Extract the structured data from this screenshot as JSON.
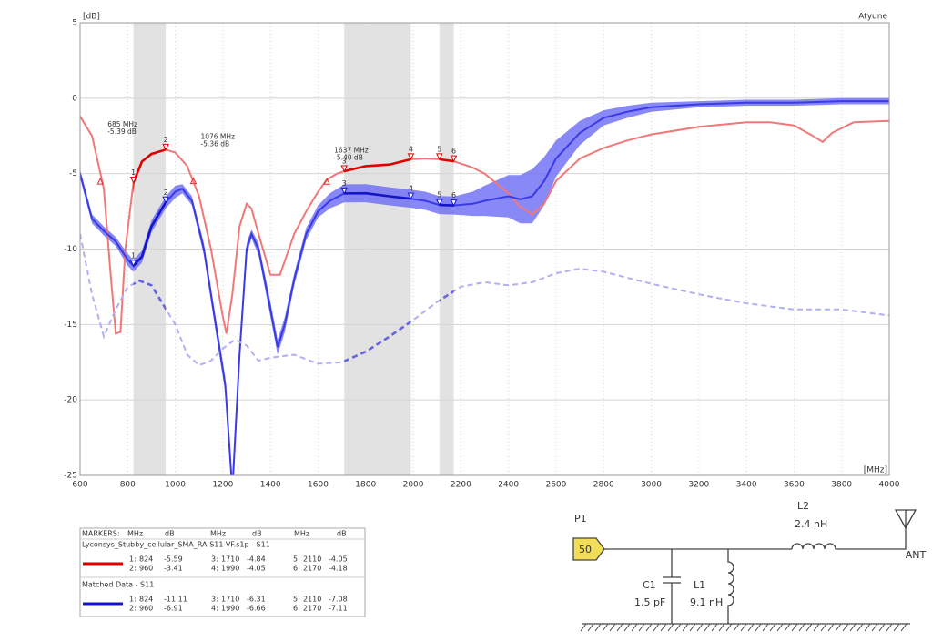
{
  "chart_data": {
    "type": "line",
    "y_label": "[dB]",
    "x_label": "[MHz]",
    "brand": "Atyune",
    "xlim": [
      600,
      4000
    ],
    "ylim": [
      -25,
      5
    ],
    "xticks": [
      600,
      800,
      1000,
      1200,
      1400,
      1600,
      1800,
      2000,
      2200,
      2400,
      2600,
      2800,
      3000,
      3200,
      3400,
      3600,
      3800,
      4000
    ],
    "yticks": [
      5,
      0,
      -5,
      -10,
      -15,
      -20,
      -25
    ],
    "grid": true,
    "bands": [
      [
        824,
        960
      ],
      [
        1710,
        1990
      ],
      [
        2110,
        2170
      ]
    ],
    "series": [
      {
        "name": "Lyconsys_Stubby_cellular_SMA_RA-S11-VF.s1p - S11",
        "color": "#f07878",
        "highlight_color": "#e00000",
        "legend_color": "#e00000",
        "x": [
          600,
          650,
          700,
          730,
          750,
          770,
          790,
          824,
          860,
          900,
          960,
          1000,
          1050,
          1100,
          1150,
          1200,
          1215,
          1240,
          1270,
          1300,
          1320,
          1350,
          1400,
          1440,
          1500,
          1550,
          1600,
          1637,
          1680,
          1710,
          1800,
          1900,
          1990,
          2050,
          2110,
          2170,
          2250,
          2300,
          2400,
          2450,
          2500,
          2550,
          2600,
          2700,
          2800,
          2900,
          3000,
          3200,
          3400,
          3500,
          3600,
          3680,
          3720,
          3760,
          3850,
          4000
        ],
        "values": [
          -1.2,
          -2.5,
          -6,
          -12,
          -15.6,
          -15.5,
          -10,
          -5.59,
          -4.2,
          -3.7,
          -3.41,
          -3.6,
          -4.5,
          -6.5,
          -10,
          -14.5,
          -15.6,
          -13,
          -8.5,
          -7,
          -7.3,
          -9,
          -11.7,
          -11.7,
          -9,
          -7.5,
          -6.2,
          -5.4,
          -5,
          -4.84,
          -4.5,
          -4.4,
          -4.05,
          -4,
          -4.05,
          -4.18,
          -4.6,
          -5,
          -6.3,
          -7.2,
          -7.7,
          -7,
          -5.5,
          -4,
          -3.3,
          -2.8,
          -2.4,
          -1.9,
          -1.6,
          -1.6,
          -1.8,
          -2.5,
          -2.9,
          -2.3,
          -1.6,
          -1.5
        ]
      },
      {
        "name": "Matched Data - S11",
        "color": "#3a3ae6",
        "highlight_color": "#1414c8",
        "legend_color": "#1414d0",
        "band_color": "#6a6af5",
        "x": [
          600,
          650,
          700,
          750,
          800,
          824,
          860,
          900,
          960,
          1000,
          1030,
          1070,
          1120,
          1170,
          1210,
          1240,
          1270,
          1300,
          1320,
          1350,
          1400,
          1430,
          1460,
          1500,
          1550,
          1600,
          1650,
          1710,
          1800,
          1900,
          1990,
          2050,
          2110,
          2170,
          2250,
          2300,
          2400,
          2450,
          2500,
          2550,
          2600,
          2700,
          2800,
          2900,
          3000,
          3200,
          3400,
          3600,
          3800,
          4000
        ],
        "values": [
          -5,
          -8,
          -8.8,
          -9.5,
          -10.7,
          -11.11,
          -10.5,
          -8.5,
          -6.91,
          -6.2,
          -6,
          -6.8,
          -10,
          -15,
          -19,
          -26,
          -17,
          -10,
          -9,
          -10,
          -14,
          -16.5,
          -15,
          -12,
          -9,
          -7.5,
          -6.8,
          -6.31,
          -6.3,
          -6.5,
          -6.66,
          -6.8,
          -7.08,
          -7.11,
          -7,
          -6.8,
          -6.5,
          -6.7,
          -6.5,
          -5.5,
          -4,
          -2.3,
          -1.3,
          -0.9,
          -0.6,
          -0.4,
          -0.3,
          -0.3,
          -0.2,
          -0.2
        ],
        "upper": [
          -4.7,
          -7.7,
          -8.5,
          -9.2,
          -10.3,
          -10.71,
          -10.1,
          -8.1,
          -6.51,
          -5.8,
          -5.7,
          -6.5,
          -9.6,
          -14.5,
          -18.5,
          -25.5,
          -16.5,
          -9.6,
          -8.7,
          -9.6,
          -13.5,
          -16,
          -14.5,
          -11.6,
          -8.6,
          -7.1,
          -6.3,
          -5.71,
          -5.7,
          -5.9,
          -6.06,
          -6.2,
          -6.48,
          -6.51,
          -6.2,
          -5.8,
          -5.1,
          -5.1,
          -4.7,
          -3.9,
          -2.8,
          -1.5,
          -0.8,
          -0.5,
          -0.3,
          -0.2,
          -0.1,
          -0.1,
          0,
          0
        ],
        "lower": [
          -5.3,
          -8.3,
          -9.1,
          -9.8,
          -11.1,
          -11.51,
          -10.9,
          -8.9,
          -7.31,
          -6.6,
          -6.3,
          -7.1,
          -10.4,
          -15.5,
          -19.5,
          -26.5,
          -17.5,
          -10.4,
          -9.3,
          -10.4,
          -14.5,
          -17,
          -15.5,
          -12.4,
          -9.4,
          -7.9,
          -7.3,
          -6.91,
          -6.9,
          -7.1,
          -7.26,
          -7.4,
          -7.68,
          -7.71,
          -7.8,
          -7.8,
          -7.9,
          -8.3,
          -8.3,
          -7.1,
          -5.2,
          -3.1,
          -1.8,
          -1.3,
          -0.9,
          -0.6,
          -0.5,
          -0.5,
          -0.4,
          -0.4
        ]
      },
      {
        "color": "#b0b0f2",
        "highlight_color": "#6464e4",
        "dash": true,
        "x": [
          600,
          650,
          700,
          750,
          800,
          850,
          900,
          1000,
          1050,
          1100,
          1150,
          1200,
          1250,
          1300,
          1350,
          1400,
          1500,
          1600,
          1700,
          1800,
          1900,
          2000,
          2100,
          2200,
          2300,
          2400,
          2500,
          2600,
          2700,
          2800,
          3000,
          3200,
          3400,
          3600,
          3800,
          4000
        ],
        "values": [
          -9,
          -13,
          -15.8,
          -14,
          -12.5,
          -12.1,
          -12.4,
          -15,
          -17,
          -17.7,
          -17.4,
          -16.6,
          -16,
          -16.4,
          -17.4,
          -17.2,
          -17,
          -17.6,
          -17.5,
          -16.8,
          -15.8,
          -14.7,
          -13.5,
          -12.5,
          -12.2,
          -12.4,
          -12.2,
          -11.6,
          -11.3,
          -11.5,
          -12.3,
          -13,
          -13.6,
          -14,
          -14,
          -14.4
        ]
      }
    ],
    "marker_labels": [
      "1",
      "2",
      "3",
      "4",
      "5",
      "6"
    ],
    "annotations": [
      {
        "lines": [
          "685 MHz",
          "-5.39 dB"
        ],
        "x": 685,
        "y": -5.39
      },
      {
        "lines": [
          "1076 MHz",
          "-5.36 dB"
        ],
        "x": 1076,
        "y": -5.36
      },
      {
        "lines": [
          "1637 MHz",
          "-5.40 dB"
        ],
        "x": 1637,
        "y": -5.4
      }
    ],
    "annotation_color": "#e03030"
  },
  "marker_table": {
    "header": [
      "MARKERS:",
      "MHz",
      "dB",
      "MHz",
      "dB",
      "MHz",
      "dB"
    ],
    "groups": [
      {
        "rows": [
          [
            "1:",
            824,
            -5.59,
            "3:",
            1710,
            -4.84,
            "5:",
            2110,
            -4.05
          ],
          [
            "2:",
            960,
            -3.41,
            "4:",
            1990,
            -4.05,
            "6:",
            2170,
            -4.18
          ]
        ]
      },
      {
        "rows": [
          [
            "1:",
            824,
            -11.11,
            "3:",
            1710,
            -6.31,
            "5:",
            2110,
            -7.08
          ],
          [
            "2:",
            960,
            -6.91,
            "4:",
            1990,
            -6.66,
            "6:",
            2170,
            -7.11
          ]
        ]
      }
    ]
  },
  "circuit": {
    "port": {
      "label": "P1",
      "impedance": 50
    },
    "components": [
      {
        "name": "C1",
        "value": "1.5 pF"
      },
      {
        "name": "L1",
        "value": "9.1 nH"
      },
      {
        "name": "L2",
        "value": "2.4 nH"
      }
    ],
    "antenna": "ANT"
  }
}
